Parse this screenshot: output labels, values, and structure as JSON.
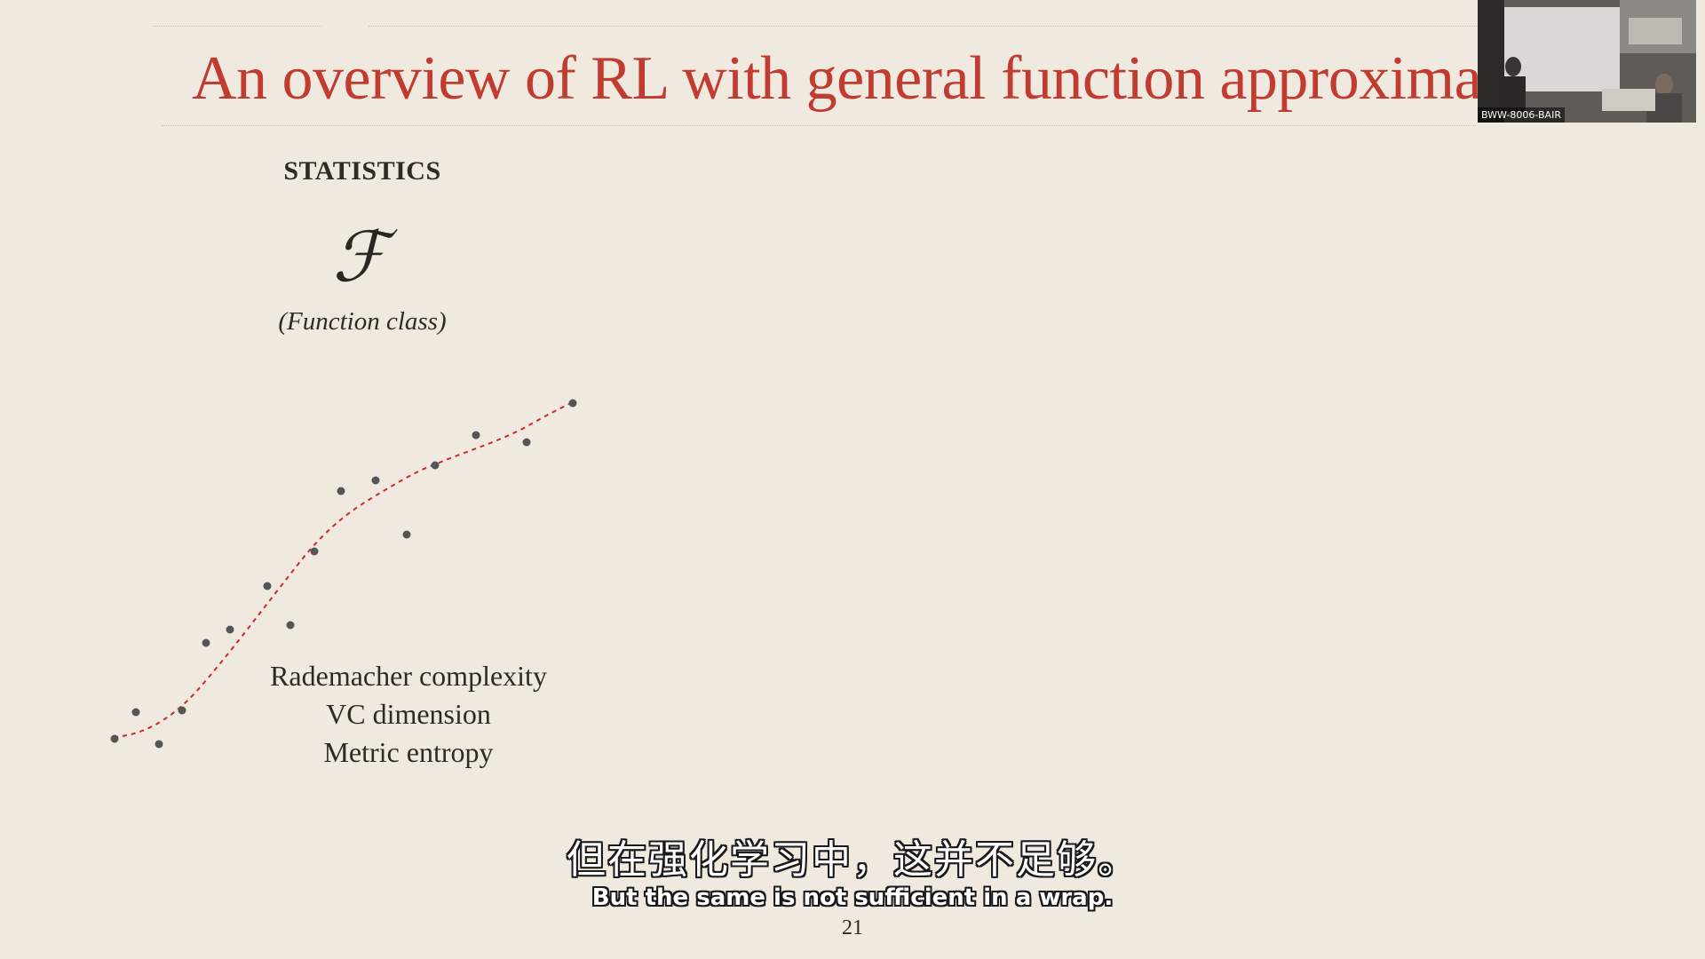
{
  "slide": {
    "title": "An overview of RL with general function approximation",
    "section_heading": "STATISTICS",
    "function_symbol": "ℱ",
    "function_caption": "(Function class)",
    "complexity_measures": [
      "Rademacher complexity",
      "VC dimension",
      "Metric entropy"
    ],
    "page_number": "21"
  },
  "subtitles": {
    "chinese": "但在强化学习中，这并不足够。",
    "english": "But the same is not sufficient in a wrap."
  },
  "video": {
    "label": "BWW-8006-BAIR"
  },
  "colors": {
    "background": "#efe9e0",
    "title": "#c23b30",
    "fit_curve": "#cc2a2a",
    "points": "#555555"
  }
}
